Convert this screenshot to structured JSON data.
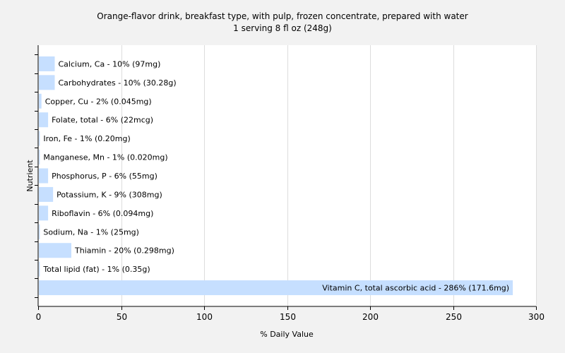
{
  "chart_data": {
    "type": "bar",
    "orientation": "horizontal",
    "title": "Orange-flavor drink, breakfast type, with pulp, frozen concentrate, prepared with water",
    "subtitle": "1 serving 8 fl oz (248g)",
    "xlabel": "% Daily Value",
    "ylabel": "Nutrient",
    "xlim": [
      0,
      300
    ],
    "xticks": [
      "0",
      "50",
      "100",
      "150",
      "200",
      "250",
      "300"
    ],
    "grid": true,
    "bar_color": "#c6dfff",
    "categories": [
      "Calcium, Ca - 10% (97mg)",
      "Carbohydrates - 10% (30.28g)",
      "Copper, Cu - 2% (0.045mg)",
      "Folate, total - 6% (22mcg)",
      "Iron, Fe - 1% (0.20mg)",
      "Manganese, Mn - 1% (0.020mg)",
      "Phosphorus, P - 6% (55mg)",
      "Potassium, K - 9% (308mg)",
      "Riboflavin - 6% (0.094mg)",
      "Sodium, Na - 1% (25mg)",
      "Thiamin - 20% (0.298mg)",
      "Total lipid (fat) - 1% (0.35g)",
      "Vitamin C, total ascorbic acid - 286% (171.6mg)"
    ],
    "values": [
      10,
      10,
      2,
      6,
      1,
      1,
      6,
      9,
      6,
      1,
      20,
      1,
      286
    ]
  }
}
